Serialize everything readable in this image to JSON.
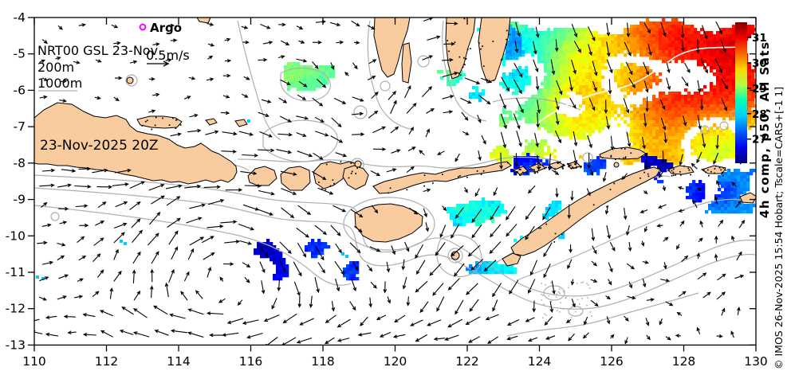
{
  "map": {
    "annotations": {
      "run_label": "NRT00 GSL 23-Nov",
      "depth_200": "200m",
      "depth_1000": "1000m",
      "speed_scale": "0.5m/s",
      "argo": "Argo",
      "timestamp": "23-Nov-2025 20Z"
    },
    "margin_text": {
      "product": "4h comp, p50, All Sats",
      "credit": "© IMOS 26-Nov-2025 15:54 Hobart; Tscale=CARS+[-1 1]"
    },
    "colors": {
      "land": "#F8CC9E",
      "coast": "#000000",
      "ocean": "#FFFFFF",
      "bathymetry": "#AFAFAF",
      "arrow": "#000000",
      "argo_marker": "#FF00FF",
      "sst_front": "#FFFFFF"
    }
  },
  "chart_data": {
    "type": "map",
    "region": "Indonesian seas / Timor Sea ocean current and SST analysis",
    "x_axis": {
      "range": [
        110,
        130
      ],
      "tick_values": [
        110,
        112,
        114,
        116,
        118,
        120,
        122,
        124,
        126,
        128,
        130
      ],
      "tick_labels": [
        "110",
        "112",
        "114",
        "116",
        "118",
        "120",
        "122",
        "124",
        "126",
        "128",
        "130"
      ]
    },
    "y_axis": {
      "range": [
        -13,
        -4
      ],
      "tick_values": [
        -4,
        -5,
        -6,
        -7,
        -8,
        -9,
        -10,
        -11,
        -12,
        -13
      ],
      "tick_labels": [
        "-4",
        "-5",
        "-6",
        "-7",
        "-8",
        "-9",
        "-10",
        "-11",
        "-12",
        "-13"
      ]
    },
    "colorbar": {
      "tick_labels": [
        "31",
        "30",
        "29",
        "28",
        "27"
      ],
      "tick_values": [
        31,
        30,
        29,
        28,
        27
      ],
      "value_range": [
        26.05,
        31.6
      ],
      "colormap": "jet",
      "colors_bottom_to_top": [
        "#00007a",
        "#0000eb",
        "#005cff",
        "#00ccff",
        "#00ffb8",
        "#adff47",
        "#ffd600",
        "#f66600",
        "#f50000",
        "#7a0000"
      ]
    },
    "vector_scale": {
      "label": "0.5m/s",
      "value_mps": 0.5
    },
    "grid": false,
    "legend_position": "right"
  }
}
